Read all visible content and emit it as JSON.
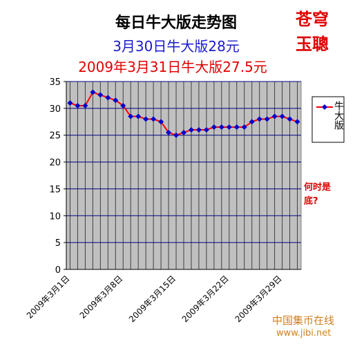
{
  "chart_data": {
    "type": "line",
    "title": "每日牛大版走势图",
    "subtitles": [
      "3月30日牛大版28元",
      "2009年3月31日牛大版27.5元"
    ],
    "stamp": [
      "苍穹",
      "玉聰"
    ],
    "annotation": [
      "何时是",
      "底?"
    ],
    "watermark": [
      "中国集币在线",
      "www.jibi.net"
    ],
    "categories": [
      "2009年3月1日",
      null,
      null,
      null,
      null,
      null,
      null,
      "2009年3月8日",
      null,
      null,
      null,
      null,
      null,
      null,
      "2009年3月15日",
      null,
      null,
      null,
      null,
      null,
      null,
      "2009年3月22日",
      null,
      null,
      null,
      null,
      null,
      null,
      "2009年3月29日",
      null,
      null
    ],
    "series": [
      {
        "name": "牛大版",
        "color": "#ff0000",
        "marker_color": "#0000cc",
        "values": [
          31,
          30.5,
          30.5,
          33,
          32.5,
          32,
          31.5,
          30.5,
          28.5,
          28.5,
          28,
          28,
          27.5,
          25.5,
          25,
          25.5,
          26,
          26,
          26,
          26.5,
          26.5,
          26.5,
          26.5,
          26.5,
          27.5,
          28,
          28,
          28.5,
          28.5,
          28,
          27.5
        ]
      }
    ],
    "ylim": [
      0,
      35
    ],
    "yticks": [
      0,
      5,
      10,
      15,
      20,
      25,
      30,
      35
    ],
    "grid": true,
    "legend": "right"
  }
}
